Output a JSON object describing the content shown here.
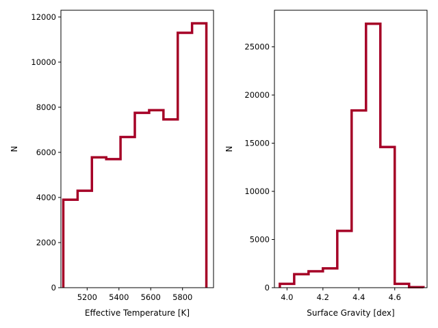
{
  "chart_data": [
    {
      "type": "step-histogram",
      "xlabel": "Effective Temperature [K]",
      "ylabel": "N",
      "xlim": [
        5035,
        5995
      ],
      "ylim": [
        0,
        12300
      ],
      "xticks": [
        5200,
        5400,
        5600,
        5800
      ],
      "yticks": [
        0,
        2000,
        4000,
        6000,
        8000,
        10000,
        12000
      ],
      "bin_edges": [
        5050,
        5140,
        5230,
        5320,
        5410,
        5500,
        5590,
        5680,
        5770,
        5860,
        5950
      ],
      "values": [
        3900,
        4300,
        5780,
        5700,
        6680,
        7750,
        7870,
        7460,
        11300,
        11720
      ],
      "color": "#a50026"
    },
    {
      "type": "step-histogram",
      "xlabel": "Surface Gravity [dex]",
      "ylabel": "N",
      "xlim": [
        3.93,
        4.78
      ],
      "ylim": [
        0,
        28800
      ],
      "xticks": [
        4.0,
        4.2,
        4.4,
        4.6
      ],
      "yticks": [
        0,
        5000,
        10000,
        15000,
        20000,
        25000
      ],
      "bin_edges": [
        3.96,
        4.04,
        4.12,
        4.2,
        4.28,
        4.36,
        4.44,
        4.52,
        4.6,
        4.68,
        4.76
      ],
      "values": [
        400,
        1400,
        1700,
        2000,
        5900,
        18400,
        27400,
        14600,
        400,
        50
      ],
      "color": "#a50026"
    }
  ]
}
